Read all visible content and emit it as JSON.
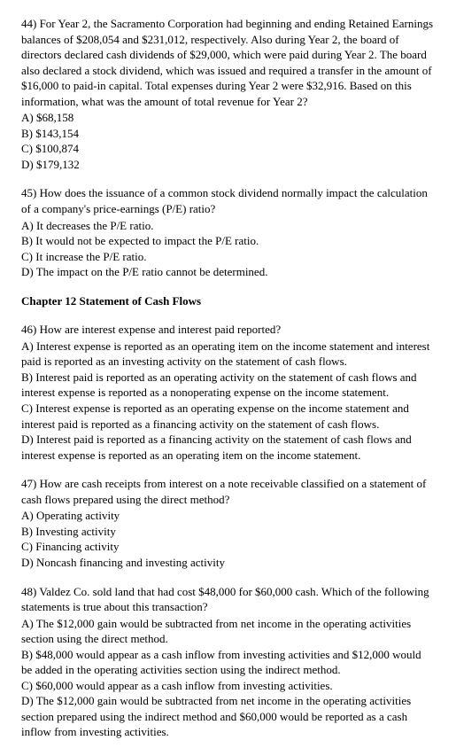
{
  "q44": {
    "stem": "44) For Year 2, the Sacramento Corporation had beginning and ending Retained Earnings balances of $208,054 and $231,012, respectively. Also during Year 2, the board of directors declared cash dividends of $29,000, which were paid during Year 2. The board also declared a stock dividend, which was issued and required a transfer in the amount of $16,000 to paid-in capital. Total expenses during Year 2 were $32,916. Based on this information, what was the amount of total revenue for Year 2?",
    "a": "A) $68,158",
    "b": "B) $143,154",
    "c": "C) $100,874",
    "d": "D) $179,132"
  },
  "q45": {
    "stem": "45) How does the issuance of a common stock dividend normally impact the calculation of a company's price-earnings (P/E) ratio?",
    "a": "A) It decreases the P/E ratio.",
    "b": "B) It would not be expected to impact the P/E ratio.",
    "c": "C) It increase the P/E ratio.",
    "d": "D) The impact on the P/E ratio cannot be determined."
  },
  "chapter": "Chapter 12   Statement of Cash Flows",
  "q46": {
    "stem": "46) How are interest expense and interest paid reported?",
    "a": "A) Interest expense is reported as an operating item on the income statement and interest paid is reported as an investing activity on the statement of cash flows.",
    "b": "B) Interest paid is reported as an operating activity on the statement of cash flows and interest expense is reported as a nonoperating expense on the income statement.",
    "c": "C) Interest expense is reported as an operating expense on the income statement and interest paid is reported as a financing activity on the statement of cash flows.",
    "d": "D) Interest paid is reported as a financing activity on the statement of cash flows and interest expense is reported as an operating item on the income statement."
  },
  "q47": {
    "stem": "47) How are cash receipts from interest on a note receivable classified on a statement of cash flows prepared using the direct method?",
    "a": "A) Operating activity",
    "b": "B) Investing activity",
    "c": "C) Financing activity",
    "d": "D) Noncash financing and investing activity"
  },
  "q48": {
    "stem": "48) Valdez Co. sold land that had cost $48,000 for $60,000 cash. Which of the following statements is true about this transaction?",
    "a": "A) The $12,000 gain would be subtracted from net income in the operating activities section using the direct method.",
    "b": "B) $48,000 would appear as a cash inflow from investing activities and $12,000 would be added in the operating activities section using the indirect method.",
    "c": "C) $60,000 would appear as a cash inflow from investing activities.",
    "d": "D) The $12,000 gain would be subtracted from net income in the operating activities section prepared using the indirect method and $60,000 would be reported as a cash inflow from investing activities."
  }
}
